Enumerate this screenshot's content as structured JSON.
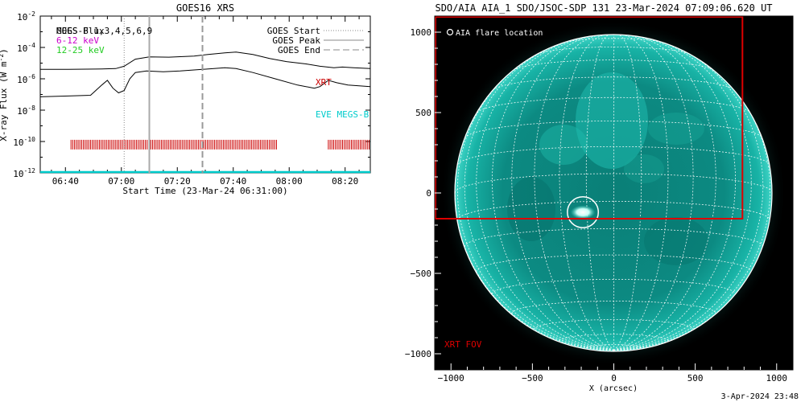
{
  "goes_panel": {
    "title": "GOES16 XRS",
    "xlabel": "Start Time (23-Mar-24 06:31:00)",
    "ylabel": "X-ray Flux (W m",
    "ylabel_unit": "-2",
    "ylabel_close": ")",
    "legend_left": [
      {
        "label": "GOES Flux",
        "color": "#000000"
      },
      {
        "label": "MEGS-B 1,3,4,5,6,9",
        "color": "#000000"
      },
      {
        "label": "6-12 keV",
        "color": "#cc00cc"
      },
      {
        "label": "12-25 keV",
        "color": "#22cc22"
      }
    ],
    "legend_right": [
      {
        "label": "GOES Start",
        "style": "dotted",
        "color": "#888888"
      },
      {
        "label": "GOES Peak",
        "style": "solid",
        "color": "#888888"
      },
      {
        "label": "GOES End",
        "style": "dashed",
        "color": "#888888"
      }
    ],
    "xrt_label": "XRT",
    "xrt_color": "#cc0000",
    "eve_label": "EVE MEGS-B",
    "eve_color": "#00cccc"
  },
  "aia_panel": {
    "title": "SDO/AIA AIA_1 SDO/JSOC-SDP 131 23-Mar-2024 07:09:06.620 UT",
    "legend": "AIA flare location",
    "xrt_fov_label": "XRT FOV",
    "xlabel": "X (arcsec)",
    "fov_color": "#dd0000",
    "disk_color": "#0e9c92"
  },
  "timestamp": "3-Apr-2024 23:48",
  "chart_data": [
    {
      "type": "line",
      "title": "GOES16 XRS",
      "xlabel": "Start Time (23-Mar-24 06:31:00)",
      "ylabel": "X-ray Flux (W m^-2)",
      "x_unit": "minutes since 06:31:00",
      "xlim": [
        0,
        118
      ],
      "ylim_log10": [
        -12,
        -2
      ],
      "y_scale": "log",
      "x_ticks": [
        {
          "t": 9,
          "label": "06:40"
        },
        {
          "t": 29,
          "label": "07:00"
        },
        {
          "t": 49,
          "label": "07:20"
        },
        {
          "t": 69,
          "label": "07:40"
        },
        {
          "t": 89,
          "label": "08:00"
        },
        {
          "t": 109,
          "label": "08:20"
        }
      ],
      "y_ticks": [
        {
          "exp": -12,
          "label": "10",
          "sup": "-12"
        },
        {
          "exp": -10,
          "label": "10",
          "sup": "-10"
        },
        {
          "exp": -8,
          "label": "10",
          "sup": "-8"
        },
        {
          "exp": -6,
          "label": "10",
          "sup": "-6"
        },
        {
          "exp": -4,
          "label": "10",
          "sup": "-4"
        },
        {
          "exp": -2,
          "label": "10",
          "sup": "-2"
        }
      ],
      "markers": {
        "goes_start": 30,
        "goes_peak": 39,
        "goes_end": 58
      },
      "series": [
        {
          "name": "GOES Flux (long)",
          "color": "#000000",
          "points_log10": [
            [
              0,
              -5.4
            ],
            [
              10,
              -5.4
            ],
            [
              20,
              -5.38
            ],
            [
              27,
              -5.35
            ],
            [
              30,
              -5.2
            ],
            [
              34,
              -4.75
            ],
            [
              39,
              -4.6
            ],
            [
              46,
              -4.62
            ],
            [
              55,
              -4.55
            ],
            [
              60,
              -4.45
            ],
            [
              66,
              -4.35
            ],
            [
              70,
              -4.3
            ],
            [
              76,
              -4.45
            ],
            [
              82,
              -4.7
            ],
            [
              88,
              -4.9
            ],
            [
              95,
              -5.05
            ],
            [
              100,
              -5.2
            ],
            [
              105,
              -5.3
            ],
            [
              108,
              -5.25
            ],
            [
              112,
              -5.3
            ],
            [
              118,
              -5.35
            ]
          ]
        },
        {
          "name": "GOES Flux (short)",
          "color": "#000000",
          "points_log10": [
            [
              0,
              -7.15
            ],
            [
              10,
              -7.1
            ],
            [
              18,
              -7.05
            ],
            [
              22,
              -6.4
            ],
            [
              24,
              -6.1
            ],
            [
              26,
              -6.6
            ],
            [
              28,
              -6.9
            ],
            [
              30,
              -6.75
            ],
            [
              32,
              -6.0
            ],
            [
              34,
              -5.6
            ],
            [
              38,
              -5.5
            ],
            [
              44,
              -5.55
            ],
            [
              50,
              -5.5
            ],
            [
              58,
              -5.4
            ],
            [
              66,
              -5.3
            ],
            [
              70,
              -5.35
            ],
            [
              76,
              -5.6
            ],
            [
              84,
              -6.0
            ],
            [
              92,
              -6.4
            ],
            [
              98,
              -6.6
            ],
            [
              100,
              -6.5
            ],
            [
              103,
              -6.1
            ],
            [
              106,
              -6.25
            ],
            [
              110,
              -6.4
            ],
            [
              118,
              -6.5
            ]
          ]
        },
        {
          "name": "XRT",
          "color": "#cc0000",
          "log10_level": -10.2,
          "intervals": [
            [
              11,
              85
            ],
            [
              103,
              118
            ]
          ]
        },
        {
          "name": "EVE MEGS-B",
          "color": "#00cccc",
          "log10_level": -12,
          "intervals": [
            [
              0,
              118
            ]
          ]
        }
      ]
    },
    {
      "type": "scatter",
      "title": "SDO/AIA AIA_1 SDO/JSOC-SDP 131 23-Mar-2024 07:09:06.620 UT",
      "xlabel": "X (arcsec)",
      "xlim": [
        -1100,
        1100
      ],
      "ylim": [
        -1100,
        1100
      ],
      "x_ticks": [
        -1000,
        -500,
        0,
        500,
        1000
      ],
      "y_ticks": [
        -1000,
        -500,
        0,
        500,
        1000
      ],
      "solar_radius_arcsec": 975,
      "flare_location": {
        "x": -190,
        "y": -120,
        "radius": 95
      },
      "xrt_fov": {
        "x0": -1100,
        "x1": 790,
        "y0": -160,
        "y1": 1100
      }
    }
  ]
}
